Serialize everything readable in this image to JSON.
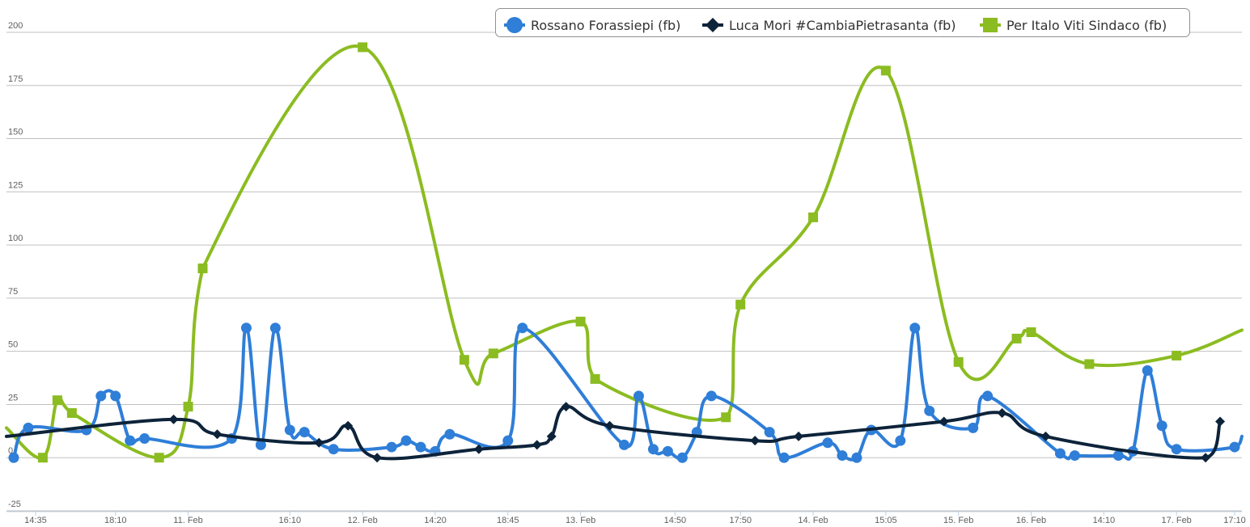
{
  "chart_data": {
    "type": "line",
    "title": "",
    "xlabel": "",
    "ylabel": "",
    "ylim": [
      -25,
      200
    ],
    "y_ticks": [
      -25,
      0,
      25,
      50,
      75,
      100,
      125,
      150,
      175,
      200
    ],
    "x_range": [
      0,
      85
    ],
    "x_ticks": [
      {
        "x": 2,
        "label": "14:35"
      },
      {
        "x": 7.5,
        "label": "18:10"
      },
      {
        "x": 12.5,
        "label": "11. Feb"
      },
      {
        "x": 19.5,
        "label": "16:10"
      },
      {
        "x": 24.5,
        "label": "12. Feb"
      },
      {
        "x": 29.5,
        "label": "14:20"
      },
      {
        "x": 34.5,
        "label": "18:45"
      },
      {
        "x": 39.5,
        "label": "13. Feb"
      },
      {
        "x": 46,
        "label": "14:50"
      },
      {
        "x": 50.5,
        "label": "17:50"
      },
      {
        "x": 55.5,
        "label": "14. Feb"
      },
      {
        "x": 60.5,
        "label": "15:05"
      },
      {
        "x": 65.5,
        "label": "15. Feb"
      },
      {
        "x": 70.5,
        "label": "16. Feb"
      },
      {
        "x": 75.5,
        "label": "14:10"
      },
      {
        "x": 80.5,
        "label": "17. Feb"
      },
      {
        "x": 84.5,
        "label": "17:10"
      }
    ],
    "grid": true,
    "legend_position": "top-right",
    "series": [
      {
        "name": "Rossano Forassiepi (fb)",
        "color": "#2F7ED8",
        "marker": "circle",
        "x": [
          0.5,
          1.5,
          5.5,
          6.5,
          7.5,
          8.5,
          9.5,
          15.5,
          16.5,
          17.5,
          18.5,
          19.5,
          20.5,
          22.5,
          26.5,
          27.5,
          28.5,
          29.5,
          30.5,
          34.5,
          35.5,
          42.5,
          43.5,
          44.5,
          45.5,
          46.5,
          47.5,
          48.5,
          52.5,
          53.5,
          56.5,
          57.5,
          58.5,
          59.5,
          61.5,
          62.5,
          63.5,
          66.5,
          67.5,
          72.5,
          73.5,
          76.5,
          77.5,
          78.5,
          79.5,
          80.5,
          84.5,
          85
        ],
        "y": [
          0,
          14,
          13,
          29,
          29,
          8,
          9,
          9,
          61,
          6,
          61,
          13,
          12,
          4,
          5,
          8,
          5,
          3,
          11,
          8,
          61,
          6,
          29,
          4,
          3,
          0,
          12,
          29,
          12,
          0,
          7,
          1,
          0,
          13,
          8,
          61,
          22,
          14,
          29,
          2,
          1,
          1,
          3,
          41,
          15,
          4,
          5,
          10
        ]
      },
      {
        "name": "Luca Mori #CambiaPietrasanta (fb)",
        "color": "#0D233A",
        "marker": "diamond",
        "x": [
          0,
          11.5,
          14.5,
          21.5,
          23.5,
          25.5,
          32.5,
          36.5,
          37.5,
          38.5,
          41.5,
          51.5,
          54.5,
          64.5,
          68.5,
          71.5,
          82.5,
          83.5
        ],
        "y": [
          10,
          18,
          11,
          7,
          15,
          0,
          4,
          6,
          10,
          24,
          15,
          8,
          10,
          17,
          21,
          10,
          0,
          17
        ]
      },
      {
        "name": "Per Italo Viti Sindaco (fb)",
        "color": "#8BBC21",
        "marker": "square",
        "x": [
          0,
          2.5,
          3.5,
          4.5,
          10.5,
          12.5,
          13.5,
          24.5,
          31.5,
          33.5,
          39.5,
          40.5,
          49.5,
          50.5,
          55.5,
          60.5,
          65.5,
          69.5,
          70.5,
          74.5,
          80.5,
          85
        ],
        "y": [
          14,
          0,
          27,
          21,
          0,
          24,
          89,
          193,
          46,
          49,
          64,
          37,
          19,
          72,
          113,
          182,
          45,
          56,
          59,
          44,
          48,
          60
        ]
      }
    ]
  }
}
